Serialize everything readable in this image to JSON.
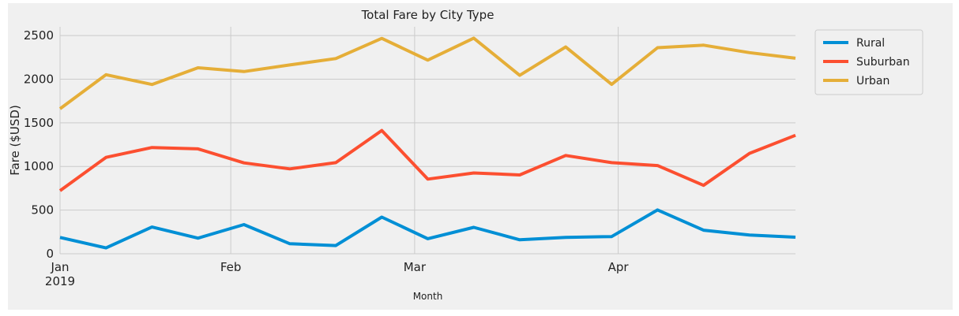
{
  "chart_data": {
    "type": "line",
    "title": "Total Fare by City Type",
    "xlabel": "Month",
    "ylabel": "Fare ($USD)",
    "ylim": [
      0,
      2600
    ],
    "yticks": [
      0,
      500,
      1000,
      1500,
      2000,
      2500
    ],
    "x": [
      "2019-01-06",
      "2019-01-13",
      "2019-01-20",
      "2019-01-27",
      "2019-02-03",
      "2019-02-10",
      "2019-02-17",
      "2019-02-24",
      "2019-03-03",
      "2019-03-10",
      "2019-03-17",
      "2019-03-24",
      "2019-03-31",
      "2019-04-07",
      "2019-04-14",
      "2019-04-21",
      "2019-04-28"
    ],
    "xlim": [
      "2019-01-06",
      "2019-04-28"
    ],
    "xticks": [
      {
        "date": "2019-01-01",
        "label": "Jan",
        "sublabel": "2019"
      },
      {
        "date": "2019-02-01",
        "label": "Feb",
        "sublabel": ""
      },
      {
        "date": "2019-03-01",
        "label": "Mar",
        "sublabel": ""
      },
      {
        "date": "2019-04-01",
        "label": "Apr",
        "sublabel": ""
      }
    ],
    "grid": true,
    "legend_position": "outside top-right",
    "series": [
      {
        "name": "Rural",
        "color": "#008fd5",
        "values": [
          187,
          67,
          306,
          179,
          334,
          115,
          94,
          420,
          172,
          302,
          160,
          187,
          197,
          502,
          270,
          215,
          190
        ]
      },
      {
        "name": "Suburban",
        "color": "#fc4f30",
        "values": [
          722,
          1104,
          1217,
          1202,
          1041,
          972,
          1044,
          1412,
          855,
          925,
          903,
          1126,
          1044,
          1010,
          784,
          1150,
          1357
        ]
      },
      {
        "name": "Urban",
        "color": "#e5ae38",
        "values": [
          1661,
          2051,
          1939,
          2131,
          2087,
          2163,
          2236,
          2467,
          2218,
          2470,
          2044,
          2369,
          1940,
          2361,
          2390,
          2304,
          2240
        ]
      }
    ]
  }
}
